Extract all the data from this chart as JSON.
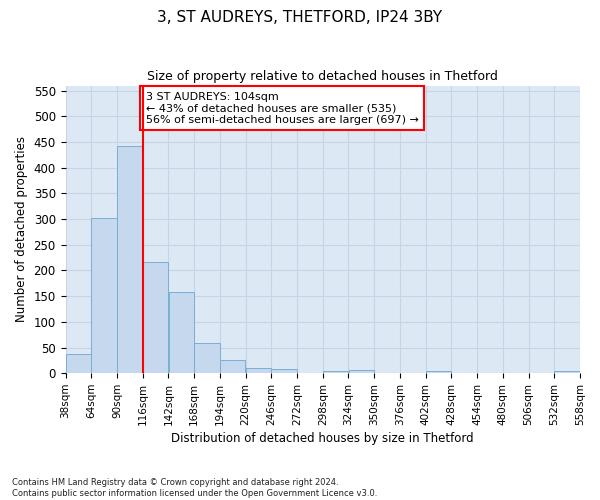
{
  "title": "3, ST AUDREYS, THETFORD, IP24 3BY",
  "subtitle": "Size of property relative to detached houses in Thetford",
  "xlabel": "Distribution of detached houses by size in Thetford",
  "ylabel": "Number of detached properties",
  "footnote": "Contains HM Land Registry data © Crown copyright and database right 2024.\nContains public sector information licensed under the Open Government Licence v3.0.",
  "bar_color": "#c5d8ee",
  "bar_edgecolor": "#7aaed4",
  "grid_color": "#c8d4e4",
  "background_color": "#dce8f4",
  "annotation_text": "3 ST AUDREYS: 104sqm\n← 43% of detached houses are smaller (535)\n56% of semi-detached houses are larger (697) →",
  "vline_x": 116,
  "bin_edges": [
    38,
    64,
    90,
    116,
    142,
    168,
    194,
    220,
    246,
    272,
    298,
    324,
    350,
    376,
    402,
    428,
    454,
    480,
    506,
    532,
    558
  ],
  "bar_heights": [
    37,
    303,
    443,
    217,
    158,
    59,
    25,
    11,
    9,
    0,
    5,
    6,
    0,
    0,
    5,
    0,
    0,
    0,
    0,
    5
  ],
  "ylim": [
    0,
    560
  ],
  "yticks": [
    0,
    50,
    100,
    150,
    200,
    250,
    300,
    350,
    400,
    450,
    500,
    550
  ],
  "xlim": [
    38,
    558
  ]
}
